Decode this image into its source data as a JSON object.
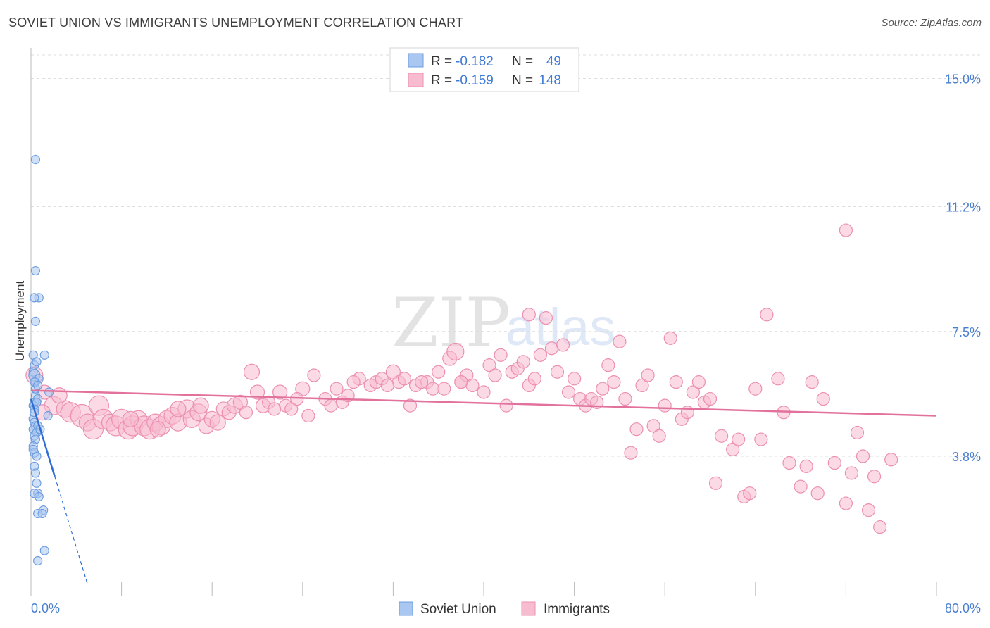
{
  "header": {
    "title": "SOVIET UNION VS IMMIGRANTS UNEMPLOYMENT CORRELATION CHART",
    "source": "Source: ZipAtlas.com"
  },
  "watermark": {
    "zip": "ZIP",
    "atlas": "atlas"
  },
  "legend": {
    "rows": [
      {
        "r_label": "R =",
        "r_value": "-0.182",
        "n_label": "N =",
        "n_value": "49"
      },
      {
        "r_label": "R =",
        "r_value": "-0.159",
        "n_label": "N =",
        "n_value": "148"
      }
    ],
    "bottom": [
      "Soviet Union",
      "Immigrants"
    ]
  },
  "chart_data": {
    "type": "scatter",
    "title": "SOVIET UNION VS IMMIGRANTS UNEMPLOYMENT CORRELATION CHART",
    "xlabel": "",
    "ylabel": "Unemployment",
    "xlim": [
      0,
      80
    ],
    "ylim": [
      0,
      15.7
    ],
    "x_tick_labels": [
      "0.0%",
      "80.0%"
    ],
    "y_ticks": [
      3.8,
      7.5,
      11.2,
      15.0
    ],
    "y_tick_labels": [
      "3.8%",
      "7.5%",
      "11.2%",
      "15.0%"
    ],
    "grid": "horizontal dashed",
    "colors": {
      "soviet_fill": "#a9c7f1",
      "soviet_stroke": "#6d9de0",
      "soviet_line": "#2f6fd3",
      "immig_fill": "#f7bcd0",
      "immig_stroke": "#ec8fb0",
      "immig_line": "#e2729b",
      "grid": "#dddddd",
      "axis": "#bbbbbb"
    },
    "series": [
      {
        "name": "Soviet Union",
        "R": -0.182,
        "N": 49,
        "trend": {
          "x0": 0.0,
          "y0": 5.5,
          "x1": 2.1,
          "y1": 3.2,
          "dashed_to_x": 5.0,
          "dashed_to_y": 0.0
        },
        "points": [
          [
            0.4,
            12.6,
            6
          ],
          [
            0.4,
            9.3,
            6
          ],
          [
            0.7,
            8.5,
            6
          ],
          [
            0.3,
            8.5,
            6
          ],
          [
            0.4,
            7.8,
            6
          ],
          [
            1.2,
            6.8,
            6
          ],
          [
            0.2,
            6.8,
            6
          ],
          [
            0.3,
            6.5,
            6
          ],
          [
            0.5,
            6.6,
            6
          ],
          [
            0.2,
            6.3,
            6
          ],
          [
            0.3,
            6.2,
            8
          ],
          [
            0.4,
            6.0,
            6
          ],
          [
            1.6,
            5.7,
            6
          ],
          [
            0.4,
            5.6,
            6
          ],
          [
            0.3,
            5.4,
            6
          ],
          [
            0.6,
            5.5,
            6
          ],
          [
            0.2,
            5.3,
            6
          ],
          [
            0.5,
            5.4,
            6
          ],
          [
            0.3,
            5.2,
            6
          ],
          [
            1.5,
            5.0,
            6
          ],
          [
            0.2,
            4.9,
            6
          ],
          [
            0.3,
            4.8,
            6
          ],
          [
            0.4,
            4.7,
            6
          ],
          [
            0.2,
            4.6,
            6
          ],
          [
            0.6,
            4.7,
            6
          ],
          [
            0.5,
            4.5,
            6
          ],
          [
            0.3,
            4.4,
            6
          ],
          [
            0.4,
            4.3,
            6
          ],
          [
            0.2,
            4.1,
            6
          ],
          [
            0.3,
            3.9,
            6
          ],
          [
            0.5,
            3.8,
            6
          ],
          [
            0.3,
            3.5,
            6
          ],
          [
            0.4,
            3.3,
            6
          ],
          [
            0.6,
            2.7,
            6
          ],
          [
            0.3,
            2.7,
            6
          ],
          [
            0.7,
            2.6,
            6
          ],
          [
            1.1,
            2.2,
            6
          ],
          [
            0.6,
            2.1,
            6
          ],
          [
            1.0,
            2.1,
            6
          ],
          [
            1.2,
            1.0,
            6
          ],
          [
            0.6,
            0.7,
            6
          ],
          [
            0.3,
            5.1,
            6
          ],
          [
            0.4,
            5.8,
            6
          ],
          [
            0.7,
            6.1,
            6
          ],
          [
            0.2,
            4.0,
            6
          ],
          [
            0.5,
            3.0,
            6
          ],
          [
            0.8,
            4.6,
            6
          ],
          [
            0.3,
            6.0,
            6
          ],
          [
            0.6,
            5.9,
            6
          ]
        ]
      },
      {
        "name": "Immigrants",
        "R": -0.159,
        "N": 148,
        "trend": {
          "x0": 0.0,
          "y0": 5.75,
          "x1": 80.0,
          "y1": 5.0
        },
        "points": [
          [
            0.3,
            6.2,
            12
          ],
          [
            1.2,
            5.7,
            10
          ],
          [
            2.0,
            5.3,
            13
          ],
          [
            3.0,
            5.2,
            12
          ],
          [
            3.5,
            5.1,
            14
          ],
          [
            4.5,
            5.0,
            16
          ],
          [
            5.0,
            4.8,
            12
          ],
          [
            5.5,
            4.6,
            14
          ],
          [
            6.0,
            5.3,
            14
          ],
          [
            6.4,
            4.9,
            14
          ],
          [
            7.0,
            4.8,
            12
          ],
          [
            7.5,
            4.7,
            14
          ],
          [
            8.0,
            4.9,
            14
          ],
          [
            8.6,
            4.6,
            14
          ],
          [
            9.0,
            4.7,
            14
          ],
          [
            9.5,
            4.9,
            12
          ],
          [
            10.0,
            4.7,
            14
          ],
          [
            10.5,
            4.6,
            14
          ],
          [
            11.0,
            4.8,
            12
          ],
          [
            11.5,
            4.7,
            13
          ],
          [
            12.0,
            4.9,
            12
          ],
          [
            12.5,
            5.0,
            12
          ],
          [
            13.0,
            4.8,
            12
          ],
          [
            13.8,
            5.2,
            13
          ],
          [
            14.2,
            4.9,
            12
          ],
          [
            14.8,
            5.1,
            12
          ],
          [
            15.5,
            4.7,
            11
          ],
          [
            16.0,
            4.9,
            11
          ],
          [
            16.5,
            4.8,
            11
          ],
          [
            17.0,
            5.2,
            10
          ],
          [
            17.5,
            5.1,
            10
          ],
          [
            18.0,
            5.3,
            11
          ],
          [
            18.5,
            5.4,
            10
          ],
          [
            19.0,
            5.1,
            9
          ],
          [
            20.0,
            5.7,
            10
          ],
          [
            20.5,
            5.3,
            10
          ],
          [
            21.0,
            5.4,
            9
          ],
          [
            22.0,
            5.7,
            10
          ],
          [
            22.5,
            5.3,
            9
          ],
          [
            23.0,
            5.2,
            9
          ],
          [
            24.0,
            5.8,
            10
          ],
          [
            24.5,
            5.0,
            9
          ],
          [
            25.0,
            6.2,
            9
          ],
          [
            26.0,
            5.5,
            9
          ],
          [
            27.0,
            5.8,
            9
          ],
          [
            27.5,
            5.4,
            9
          ],
          [
            28.0,
            5.6,
            9
          ],
          [
            29.0,
            6.1,
            9
          ],
          [
            30.0,
            5.9,
            9
          ],
          [
            30.5,
            6.0,
            9
          ],
          [
            31.0,
            6.1,
            9
          ],
          [
            32.0,
            6.3,
            10
          ],
          [
            32.5,
            6.0,
            9
          ],
          [
            33.0,
            6.1,
            9
          ],
          [
            33.5,
            5.3,
            9
          ],
          [
            34.0,
            5.9,
            9
          ],
          [
            35.0,
            6.0,
            9
          ],
          [
            36.0,
            6.3,
            9
          ],
          [
            36.5,
            5.8,
            9
          ],
          [
            37.0,
            6.7,
            10
          ],
          [
            37.5,
            6.9,
            12
          ],
          [
            38.0,
            6.0,
            9
          ],
          [
            38.5,
            6.2,
            9
          ],
          [
            39.0,
            5.9,
            9
          ],
          [
            40.0,
            5.7,
            9
          ],
          [
            40.5,
            6.5,
            9
          ],
          [
            41.0,
            6.2,
            9
          ],
          [
            42.0,
            5.3,
            9
          ],
          [
            42.5,
            6.3,
            9
          ],
          [
            43.0,
            6.4,
            9
          ],
          [
            43.5,
            6.6,
            9
          ],
          [
            44.0,
            5.9,
            9
          ],
          [
            44.5,
            6.1,
            9
          ],
          [
            45.0,
            6.8,
            9
          ],
          [
            45.5,
            7.9,
            9
          ],
          [
            46.0,
            7.0,
            9
          ],
          [
            46.5,
            6.3,
            9
          ],
          [
            47.0,
            7.1,
            9
          ],
          [
            47.5,
            5.7,
            9
          ],
          [
            48.0,
            6.1,
            9
          ],
          [
            48.5,
            5.5,
            9
          ],
          [
            49.0,
            5.3,
            9
          ],
          [
            49.5,
            5.5,
            9
          ],
          [
            50.0,
            5.4,
            9
          ],
          [
            50.5,
            5.8,
            9
          ],
          [
            51.0,
            6.5,
            9
          ],
          [
            51.5,
            6.0,
            9
          ],
          [
            52.0,
            7.2,
            9
          ],
          [
            52.5,
            5.5,
            9
          ],
          [
            53.0,
            3.9,
            9
          ],
          [
            53.5,
            4.6,
            9
          ],
          [
            54.0,
            5.9,
            9
          ],
          [
            54.5,
            6.2,
            9
          ],
          [
            55.0,
            4.7,
            9
          ],
          [
            55.5,
            4.4,
            9
          ],
          [
            56.0,
            5.3,
            9
          ],
          [
            56.5,
            7.3,
            9
          ],
          [
            57.0,
            6.0,
            9
          ],
          [
            57.5,
            4.9,
            9
          ],
          [
            58.0,
            5.1,
            9
          ],
          [
            58.5,
            5.7,
            9
          ],
          [
            59.0,
            6.0,
            9
          ],
          [
            59.5,
            5.4,
            9
          ],
          [
            60.0,
            5.5,
            9
          ],
          [
            60.5,
            3.0,
            9
          ],
          [
            61.0,
            4.4,
            9
          ],
          [
            62.0,
            4.0,
            9
          ],
          [
            62.5,
            4.3,
            9
          ],
          [
            63.0,
            2.6,
            9
          ],
          [
            63.5,
            2.7,
            9
          ],
          [
            64.0,
            5.8,
            9
          ],
          [
            64.5,
            4.3,
            9
          ],
          [
            65.0,
            8.0,
            9
          ],
          [
            66.0,
            6.1,
            9
          ],
          [
            66.5,
            5.1,
            9
          ],
          [
            67.0,
            3.6,
            9
          ],
          [
            68.0,
            2.9,
            9
          ],
          [
            68.5,
            3.5,
            9
          ],
          [
            69.0,
            6.0,
            9
          ],
          [
            69.5,
            2.7,
            9
          ],
          [
            70.0,
            5.5,
            9
          ],
          [
            71.0,
            3.6,
            9
          ],
          [
            72.0,
            2.4,
            9
          ],
          [
            72.5,
            3.3,
            9
          ],
          [
            73.0,
            4.5,
            9
          ],
          [
            73.5,
            3.8,
            9
          ],
          [
            74.0,
            2.2,
            9
          ],
          [
            74.5,
            3.2,
            9
          ],
          [
            75.0,
            1.7,
            9
          ],
          [
            76.0,
            3.7,
            9
          ],
          [
            72.0,
            10.5,
            9
          ],
          [
            44.0,
            8.0,
            9
          ],
          [
            38.0,
            6.0,
            9
          ],
          [
            35.5,
            5.8,
            9
          ],
          [
            41.5,
            6.8,
            9
          ],
          [
            26.5,
            5.3,
            9
          ],
          [
            31.5,
            5.9,
            9
          ],
          [
            34.5,
            6.0,
            9
          ],
          [
            28.5,
            6.0,
            9
          ],
          [
            19.5,
            6.3,
            11
          ],
          [
            21.5,
            5.2,
            9
          ],
          [
            23.5,
            5.5,
            9
          ],
          [
            15.0,
            5.3,
            11
          ],
          [
            13.0,
            5.2,
            11
          ],
          [
            2.5,
            5.6,
            11
          ],
          [
            1.0,
            5.1,
            11
          ],
          [
            8.8,
            4.9,
            11
          ],
          [
            11.2,
            4.6,
            11
          ]
        ]
      }
    ]
  }
}
